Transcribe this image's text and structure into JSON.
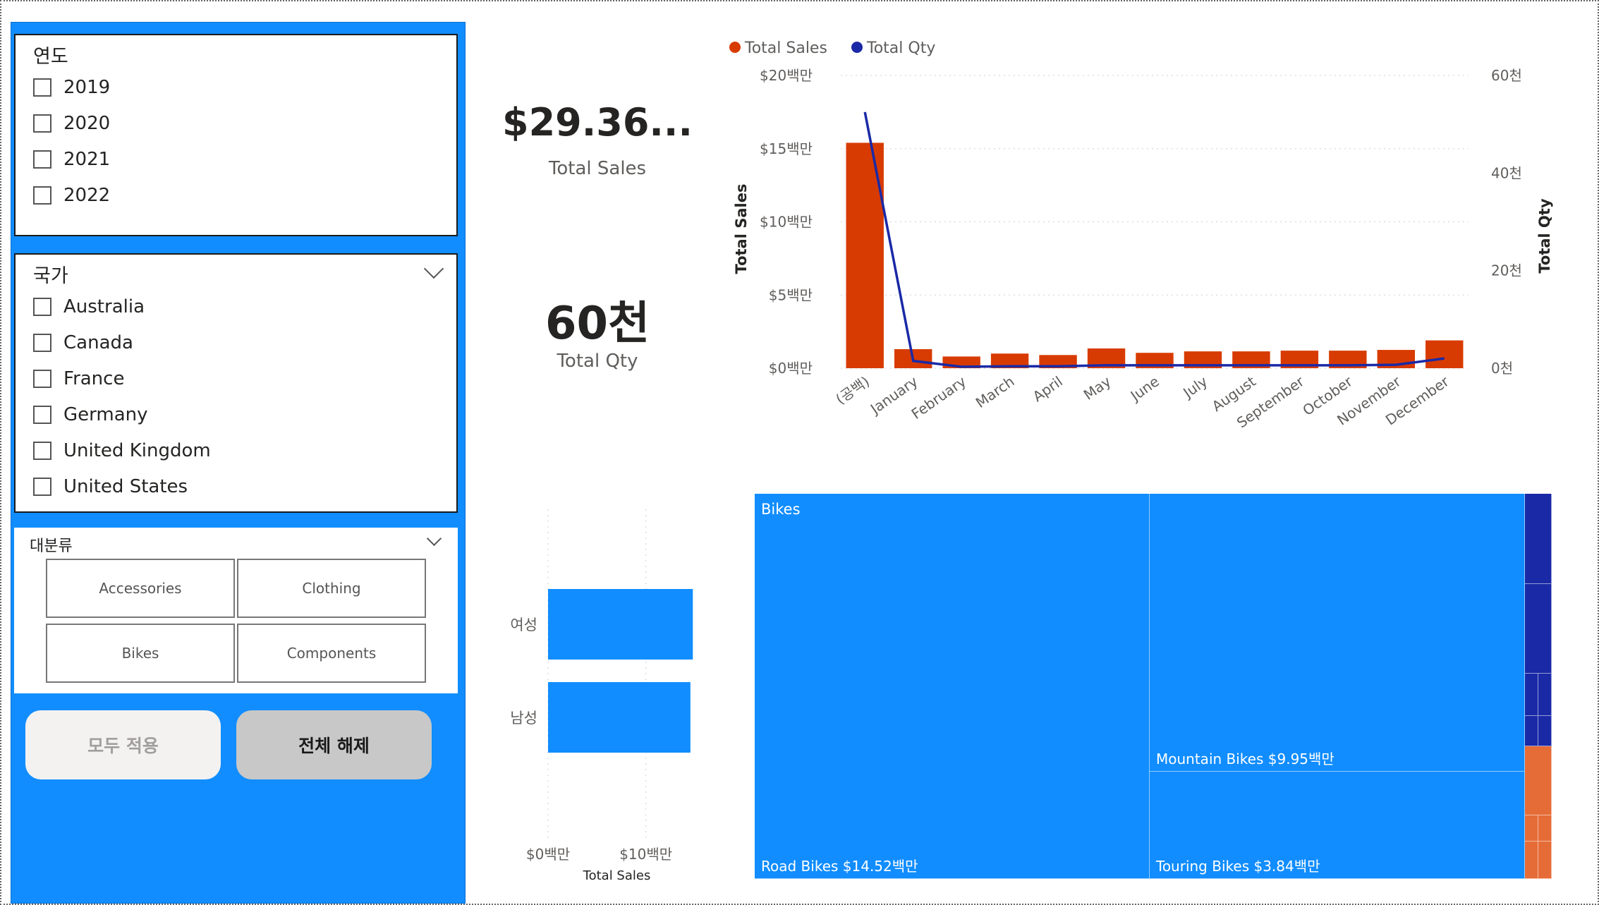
{
  "colors": {
    "sidebar_bg": "#118DFF",
    "sales": "#D83B01",
    "qty": "#1A29A6",
    "bar_blue": "#118DFF",
    "tm_blue": "#118DFF",
    "tm_navy": "#1A29A6",
    "tm_orange": "#E66C37"
  },
  "slicers": {
    "year": {
      "title": "연도",
      "items": [
        "2019",
        "2020",
        "2021",
        "2022"
      ]
    },
    "country": {
      "title": "국가",
      "items": [
        "Australia",
        "Canada",
        "France",
        "Germany",
        "United Kingdom",
        "United States"
      ]
    },
    "category": {
      "title": "대분류",
      "tiles": [
        "Accessories",
        "Clothing",
        "Bikes",
        "Components"
      ]
    }
  },
  "buttons": {
    "apply_all": "모두 적용",
    "clear_all": "전체 해제"
  },
  "kpis": {
    "sales": {
      "value": "$29.36...",
      "label": "Total Sales"
    },
    "qty": {
      "value": "60천",
      "label": "Total Qty"
    }
  },
  "chart_data": [
    {
      "type": "bar+line",
      "title": "",
      "legend": [
        "Total Sales",
        "Total Qty"
      ],
      "legend_position": "top-left",
      "categories": [
        "(공백)",
        "January",
        "February",
        "March",
        "April",
        "May",
        "June",
        "July",
        "August",
        "September",
        "October",
        "November",
        "December"
      ],
      "series": [
        {
          "name": "Total Sales",
          "type": "bar",
          "axis": "left",
          "values": [
            15.4,
            1.3,
            0.8,
            1.0,
            0.9,
            1.35,
            1.05,
            1.15,
            1.15,
            1.2,
            1.2,
            1.25,
            1.9
          ]
        },
        {
          "name": "Total Qty",
          "type": "line",
          "axis": "right",
          "values": [
            52.5,
            1.5,
            0.3,
            0.4,
            0.4,
            0.6,
            0.6,
            0.6,
            0.6,
            0.6,
            0.6,
            0.7,
            2.0
          ]
        }
      ],
      "ylabel_left": "Total Sales",
      "ylabel_right": "Total Qty",
      "yticks_left": [
        "$0백만",
        "$5백만",
        "$10백만",
        "$15백만",
        "$20백만"
      ],
      "yticks_right": [
        "0천",
        "20천",
        "40천",
        "60천"
      ],
      "ylim_left": [
        0,
        20
      ],
      "ylim_right": [
        0,
        60
      ],
      "grid": true
    },
    {
      "type": "bar",
      "orientation": "horizontal",
      "categories": [
        "여성",
        "남성"
      ],
      "values": [
        14.8,
        14.55
      ],
      "xlabel": "Total Sales",
      "xticks": [
        "$0백만",
        "$10백만"
      ],
      "xlim": [
        0,
        15.5
      ],
      "grid": true
    },
    {
      "type": "treemap",
      "groups": [
        {
          "name": "Bikes",
          "children": [
            {
              "name": "Road Bikes",
              "label": "Road Bikes $14.52백만",
              "value": 14.52
            },
            {
              "name": "Mountain Bikes",
              "label": "Mountain Bikes $9.95백만",
              "value": 9.95
            },
            {
              "name": "Touring Bikes",
              "label": "Touring Bikes $3.84백만",
              "value": 3.84
            }
          ]
        }
      ]
    }
  ]
}
